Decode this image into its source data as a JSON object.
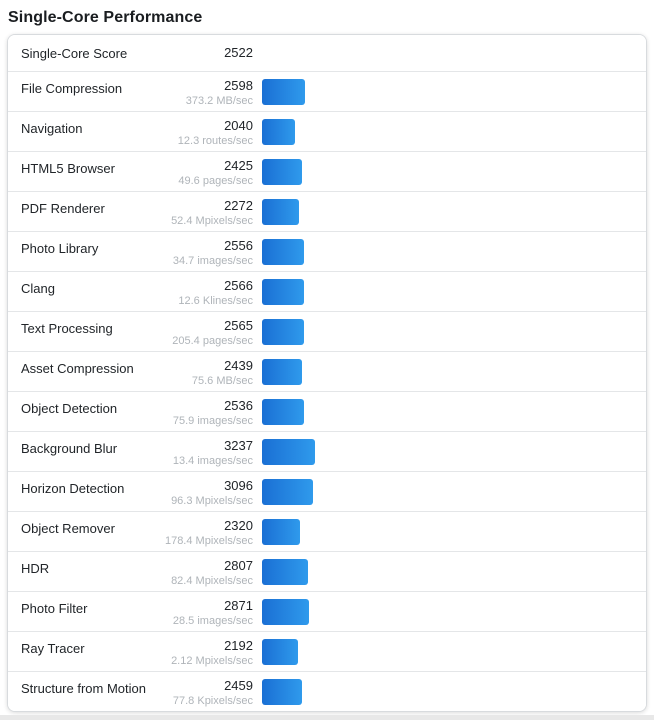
{
  "page": {
    "title": "Single-Core Performance"
  },
  "summary": {
    "label": "Single-Core Score",
    "score": 2522
  },
  "chart_data": {
    "type": "bar",
    "orientation": "horizontal",
    "title": "Single-Core Performance",
    "categories": [
      "File Compression",
      "Navigation",
      "HTML5 Browser",
      "PDF Renderer",
      "Photo Library",
      "Clang",
      "Text Processing",
      "Asset Compression",
      "Object Detection",
      "Background Blur",
      "Horizon Detection",
      "Object Remover",
      "HDR",
      "Photo Filter",
      "Ray Tracer",
      "Structure from Motion"
    ],
    "values": [
      2598,
      2040,
      2425,
      2272,
      2556,
      2566,
      2565,
      2439,
      2536,
      3237,
      3096,
      2320,
      2807,
      2871,
      2192,
      2459
    ],
    "units": [
      "373.2 MB/sec",
      "12.3 routes/sec",
      "49.6 pages/sec",
      "52.4 Mpixels/sec",
      "34.7 images/sec",
      "12.6 Klines/sec",
      "205.4 pages/sec",
      "75.6 MB/sec",
      "75.9 images/sec",
      "13.4 images/sec",
      "96.3 Mpixels/sec",
      "178.4 Mpixels/sec",
      "82.4 Mpixels/sec",
      "28.5 images/sec",
      "2.12 Mpixels/sec",
      "77.8 Kpixels/sec"
    ],
    "xlabel": "",
    "ylabel": "",
    "xlim": [
      0,
      3237
    ],
    "grid": false,
    "legend": "none"
  },
  "colors": {
    "bar_gradient_start": "#1a6fd4",
    "bar_gradient_end": "#2f9aec",
    "score_text": "#212529",
    "unit_text": "#afb4b9",
    "row_border": "#e4e6e8",
    "card_border": "#d8dbde",
    "title_text": "#1a1d20",
    "page_strip": "#e8e8e8"
  }
}
